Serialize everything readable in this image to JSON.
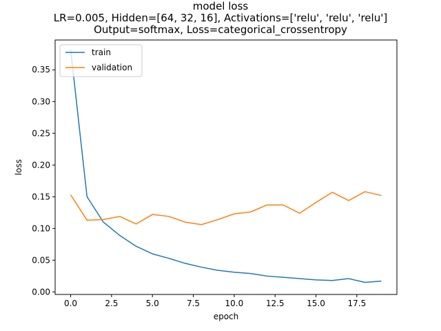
{
  "chart_data": {
    "type": "line",
    "title_lines": [
      "model loss",
      "LR=0.005, Hidden=[64, 32, 16], Activations=['relu', 'relu', 'relu']",
      "Output=softmax, Loss=categorical_crossentropy"
    ],
    "xlabel": "epoch",
    "ylabel": "loss",
    "xlim": [
      -0.95,
      19.95
    ],
    "ylim": [
      -0.004,
      0.397
    ],
    "xticks": [
      0.0,
      2.5,
      5.0,
      7.5,
      10.0,
      12.5,
      15.0,
      17.5
    ],
    "xtick_labels": [
      "0.0",
      "2.5",
      "5.0",
      "7.5",
      "10.0",
      "12.5",
      "15.0",
      "17.5"
    ],
    "yticks": [
      0.0,
      0.05,
      0.1,
      0.15,
      0.2,
      0.25,
      0.3,
      0.35
    ],
    "ytick_labels": [
      "0.00",
      "0.05",
      "0.10",
      "0.15",
      "0.20",
      "0.25",
      "0.30",
      "0.35"
    ],
    "grid": false,
    "legend_position": "upper-left",
    "x": [
      0,
      1,
      2,
      3,
      4,
      5,
      6,
      7,
      8,
      9,
      10,
      11,
      12,
      13,
      14,
      15,
      16,
      17,
      18,
      19
    ],
    "series": [
      {
        "name": "train",
        "color": "#1f77b4",
        "values": [
          0.382,
          0.15,
          0.11,
          0.089,
          0.072,
          0.06,
          0.053,
          0.045,
          0.039,
          0.034,
          0.031,
          0.029,
          0.025,
          0.023,
          0.021,
          0.019,
          0.018,
          0.021,
          0.015,
          0.017
        ]
      },
      {
        "name": "validation",
        "color": "#ff7f0e",
        "values": [
          0.153,
          0.113,
          0.114,
          0.119,
          0.107,
          0.122,
          0.119,
          0.11,
          0.106,
          0.114,
          0.123,
          0.126,
          0.137,
          0.137,
          0.124,
          0.141,
          0.157,
          0.144,
          0.158,
          0.152
        ]
      }
    ]
  }
}
